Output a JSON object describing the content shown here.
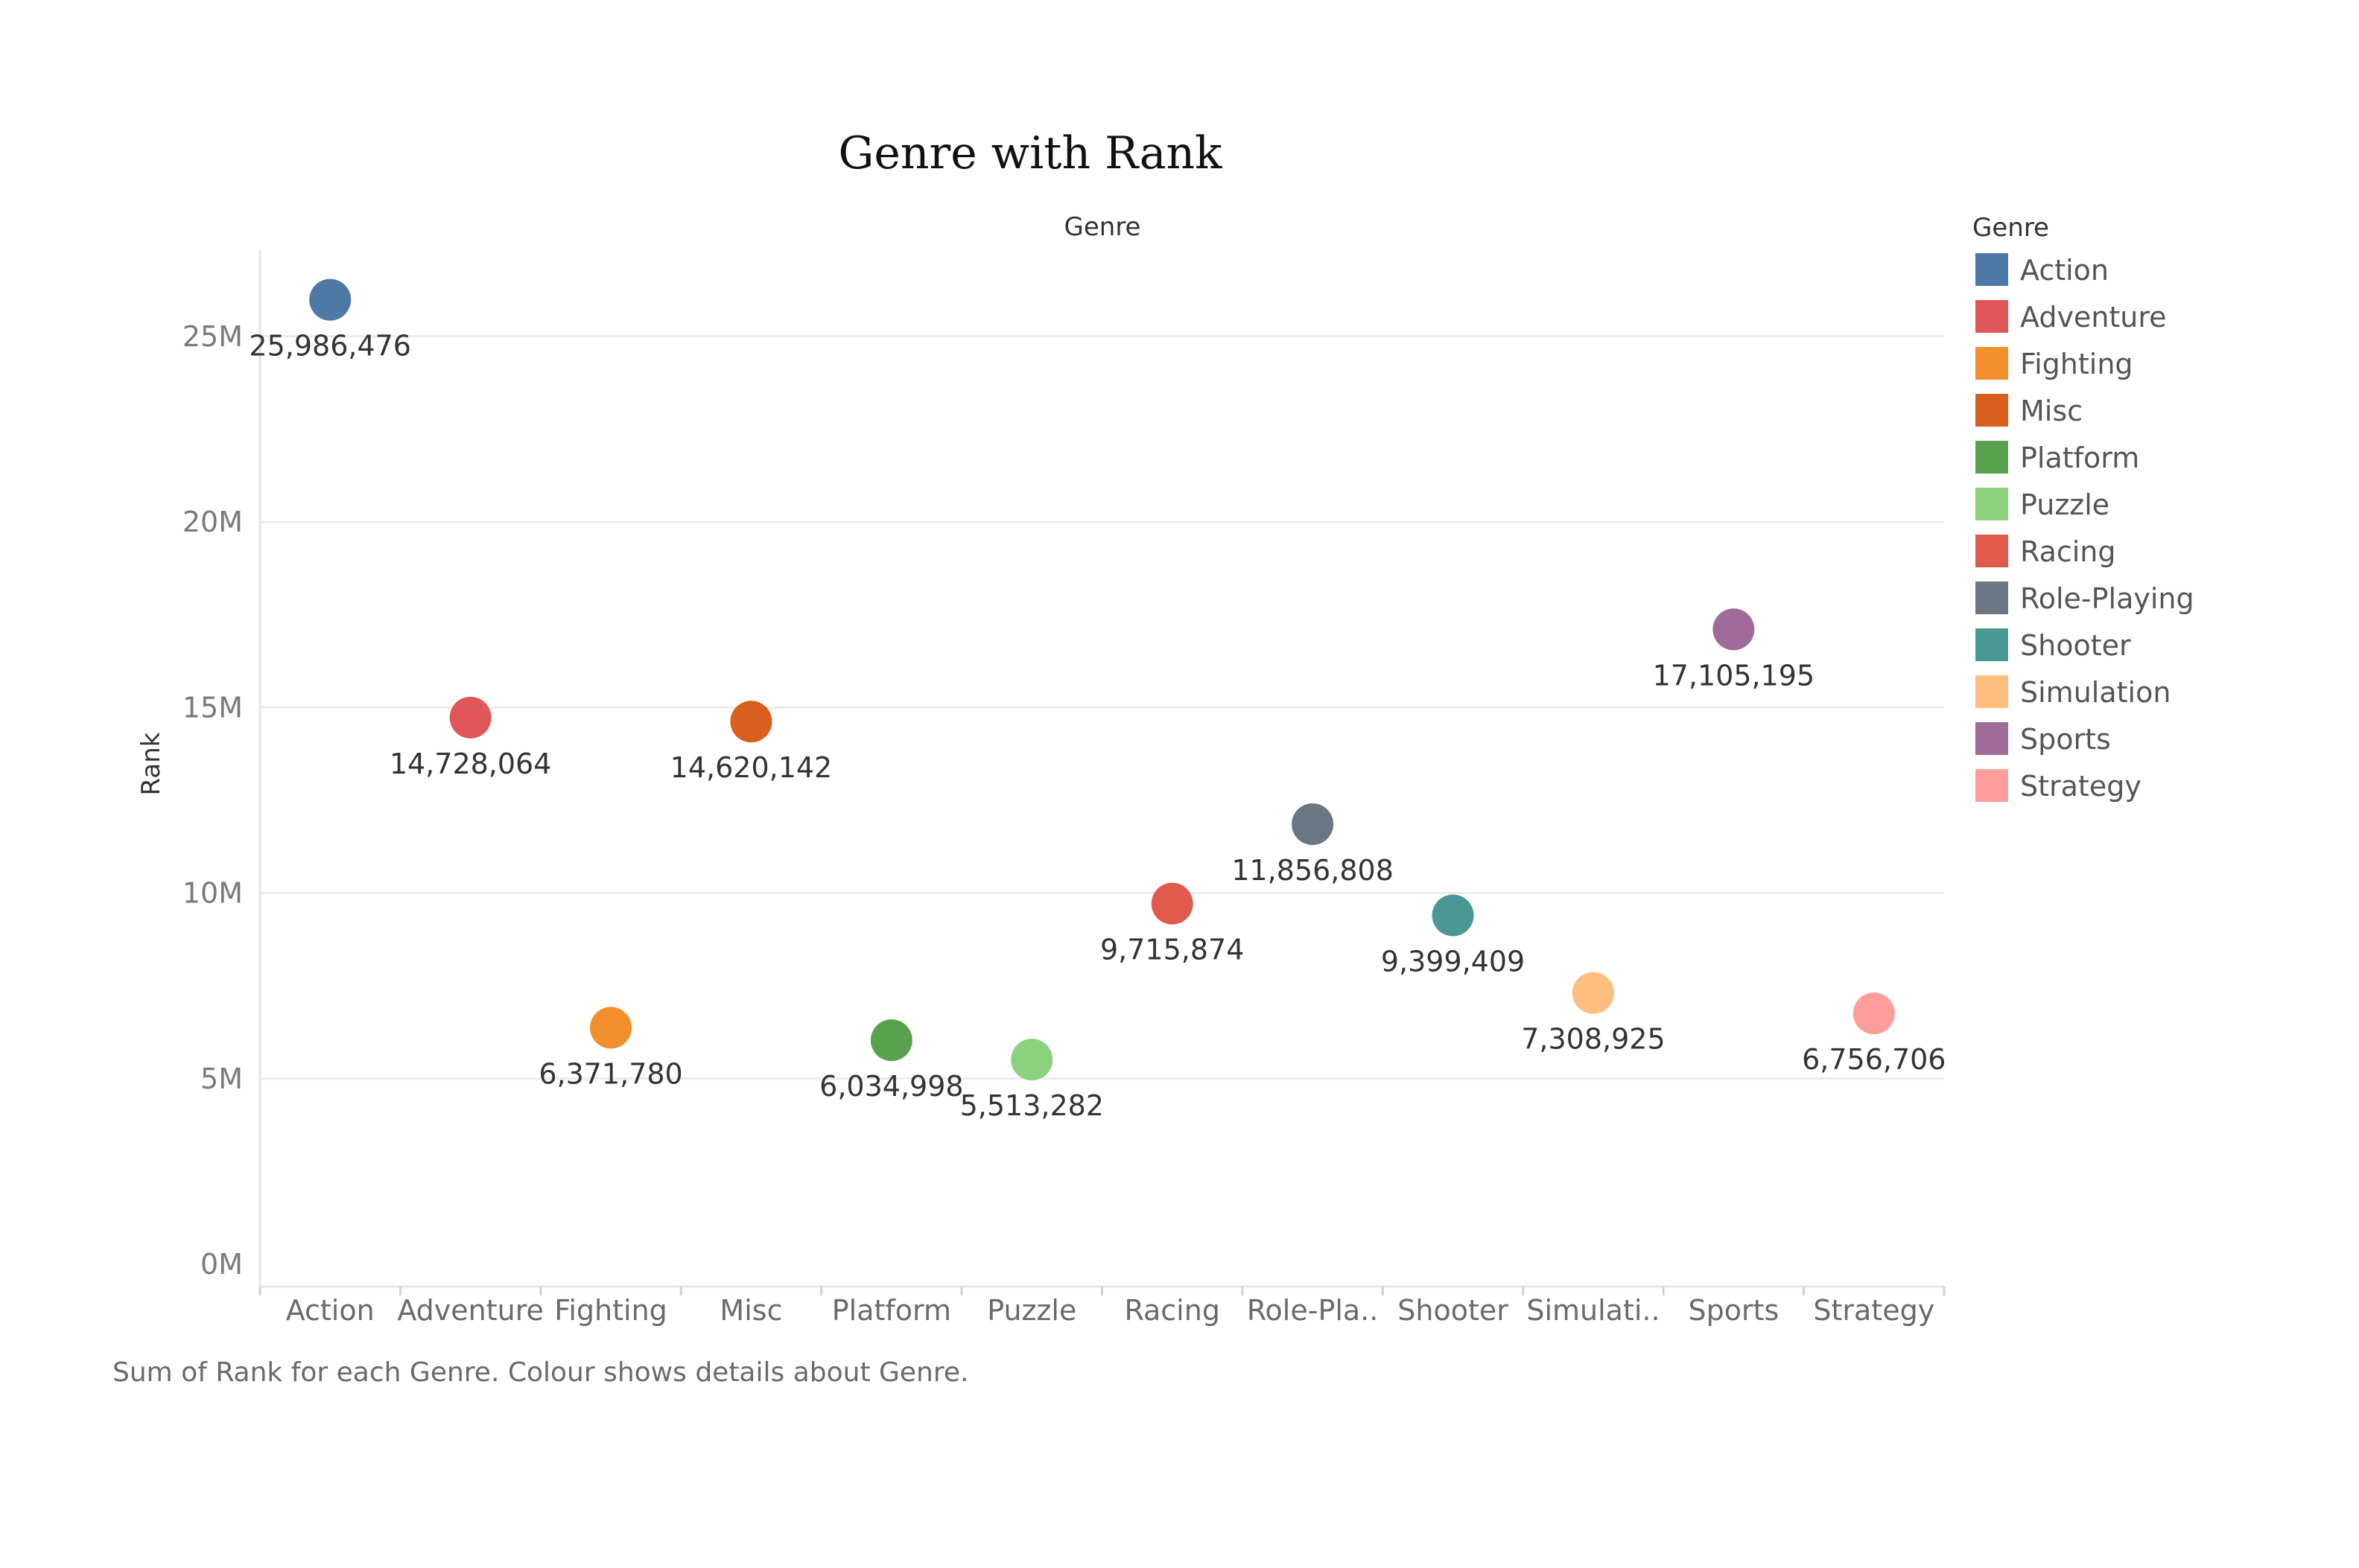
{
  "chart_data": {
    "type": "scatter",
    "title": "Genre with Rank",
    "column_header": "Genre",
    "ylabel": "Rank",
    "ylim": [
      0,
      28000000
    ],
    "y_ticks": [
      {
        "value": 0,
        "label": "0M"
      },
      {
        "value": 5000000,
        "label": "5M"
      },
      {
        "value": 10000000,
        "label": "10M"
      },
      {
        "value": 15000000,
        "label": "15M"
      },
      {
        "value": 20000000,
        "label": "20M"
      },
      {
        "value": 25000000,
        "label": "25M"
      }
    ],
    "grid": true,
    "legend": {
      "title": "Genre",
      "placement": "right"
    },
    "categories": [
      "Action",
      "Adventure",
      "Fighting",
      "Misc",
      "Platform",
      "Puzzle",
      "Racing",
      "Role-Playing",
      "Shooter",
      "Simulation",
      "Sports",
      "Strategy"
    ],
    "tick_labels": [
      "Action",
      "Adventure",
      "Fighting",
      "Misc",
      "Platform",
      "Puzzle",
      "Racing",
      "Role-Pla..",
      "Shooter",
      "Simulati..",
      "Sports",
      "Strategy"
    ],
    "values": [
      25986476,
      14728064,
      6371780,
      14620142,
      6034998,
      5513282,
      9715874,
      11856808,
      9399409,
      7308925,
      17105195,
      6756706
    ],
    "value_labels": [
      "25,986,476",
      "14,728,064",
      "6,371,780",
      "14,620,142",
      "6,034,998",
      "5,513,282",
      "9,715,874",
      "11,856,808",
      "9,399,409",
      "7,308,925",
      "17,105,195",
      "6,756,706"
    ],
    "colors": [
      "#4e79a7",
      "#e15759",
      "#f28e2b",
      "#d95f1d",
      "#59a14f",
      "#8cd17d",
      "#e05a4e",
      "#6b7782",
      "#499894",
      "#ffbe7d",
      "#a06b9a",
      "#ff9d9a"
    ],
    "caption": "Sum of Rank for each Genre. Colour shows details about Genre."
  }
}
